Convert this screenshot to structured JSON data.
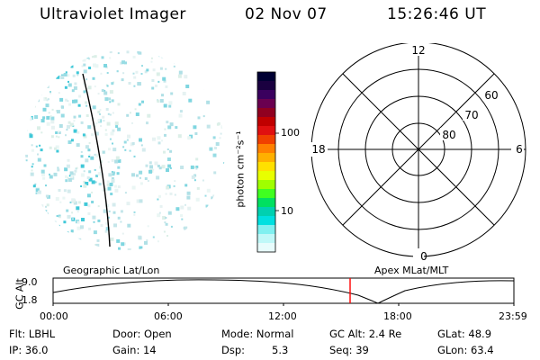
{
  "header": {
    "instrument": "Ultraviolet Imager",
    "date": "02 Nov 07",
    "time": "15:26:46 UT"
  },
  "colorbar": {
    "unit_label": "photon cm⁻²s⁻¹",
    "ticks": [
      "100",
      "10"
    ],
    "colors": [
      "#000033",
      "#1a0040",
      "#3a005e",
      "#6a0050",
      "#900020",
      "#c00000",
      "#e01010",
      "#f04000",
      "#ff8000",
      "#ffb000",
      "#ffe000",
      "#e8ff00",
      "#a0ff00",
      "#40ff20",
      "#00e060",
      "#00d0b0",
      "#00e0e0",
      "#80f0f0",
      "#c0f8f8",
      "#e8fcfc"
    ]
  },
  "polar_grid": {
    "mlt_labels": {
      "top": "12",
      "right": "6",
      "bottom": "0",
      "left": "18"
    },
    "lat_labels": [
      "60",
      "70",
      "80"
    ]
  },
  "timeline": {
    "left_title": "Geographic Lat/Lon",
    "right_title": "Apex MLat/MLT",
    "axis_label": "GC Alt",
    "y_ticks": [
      "9.0",
      "1.8"
    ],
    "x_ticks": [
      "00:00",
      "06:00",
      "12:00",
      "18:00",
      "23:59"
    ],
    "marker_color": "#ff0000"
  },
  "info": {
    "filter": "Flt: LBHL",
    "door": "Door: Open",
    "mode": "Mode: Normal",
    "gc_alt": "GC Alt: 2.4 Re",
    "glat": "GLat: 48.9",
    "ip": "IP: 36.0",
    "gain": "Gain: 14",
    "dsp_label": "Dsp:",
    "dsp_value": "5.3",
    "seq": "Seq: 39",
    "glon": "GLon: 63.4"
  }
}
